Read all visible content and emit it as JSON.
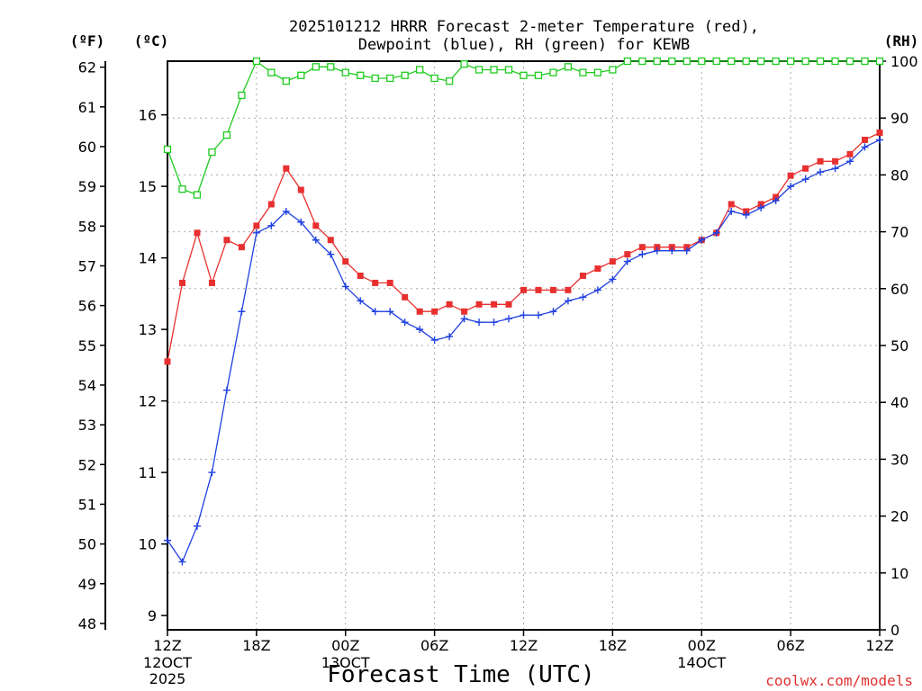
{
  "chart_data": {
    "type": "line",
    "title_line1": "2025101212 HRRR Forecast 2-meter Temperature (red),",
    "title_line2": "Dewpoint (blue), RH (green) for KEWB",
    "xlabel": "Forecast Time (UTC)",
    "credit": "coolwx.com/models",
    "units": {
      "fahrenheit": "(ºF)",
      "celsius": "(ºC)",
      "rh": "(RH)"
    },
    "x_range": [
      0,
      48
    ],
    "x_ticks": [
      {
        "x": 0,
        "label": "12Z",
        "sub1": "12OCT",
        "sub2": "2025"
      },
      {
        "x": 6,
        "label": "18Z",
        "sub1": "",
        "sub2": ""
      },
      {
        "x": 12,
        "label": "00Z",
        "sub1": "13OCT",
        "sub2": ""
      },
      {
        "x": 18,
        "label": "06Z",
        "sub1": "",
        "sub2": ""
      },
      {
        "x": 24,
        "label": "12Z",
        "sub1": "",
        "sub2": ""
      },
      {
        "x": 30,
        "label": "18Z",
        "sub1": "",
        "sub2": ""
      },
      {
        "x": 36,
        "label": "00Z",
        "sub1": "14OCT",
        "sub2": ""
      },
      {
        "x": 42,
        "label": "06Z",
        "sub1": "",
        "sub2": ""
      },
      {
        "x": 48,
        "label": "12Z",
        "sub1": "",
        "sub2": ""
      }
    ],
    "celsius_range": [
      8.8,
      16.75
    ],
    "celsius_ticks": [
      "9",
      "10",
      "11",
      "12",
      "13",
      "14",
      "15",
      "16"
    ],
    "fahrenheit_ticks": [
      "48",
      "49",
      "50",
      "51",
      "52",
      "53",
      "54",
      "55",
      "56",
      "57",
      "58",
      "59",
      "60",
      "61",
      "62"
    ],
    "rh_range": [
      0,
      100
    ],
    "rh_ticks": [
      "0",
      "10",
      "20",
      "30",
      "40",
      "50",
      "60",
      "70",
      "80",
      "90",
      "100"
    ],
    "grid": true,
    "series": [
      {
        "name": "Temperature",
        "color": "#e83030",
        "marker": "square-filled",
        "axis": "celsius",
        "values": [
          12.55,
          13.65,
          14.35,
          13.65,
          14.25,
          14.15,
          14.45,
          14.75,
          15.25,
          14.95,
          14.45,
          14.25,
          13.95,
          13.75,
          13.65,
          13.65,
          13.45,
          13.25,
          13.25,
          13.35,
          13.25,
          13.35,
          13.35,
          13.35,
          13.55,
          13.55,
          13.55,
          13.55,
          13.75,
          13.85,
          13.95,
          14.05,
          14.15,
          14.15,
          14.15,
          14.15,
          14.25,
          14.35,
          14.75,
          14.65,
          14.75,
          14.85,
          15.15,
          15.25,
          15.35,
          15.35,
          15.45,
          15.65,
          15.75
        ]
      },
      {
        "name": "Dewpoint",
        "color": "#2040e0",
        "marker": "plus",
        "axis": "celsius",
        "values": [
          10.05,
          9.75,
          10.25,
          11.0,
          12.15,
          13.25,
          14.35,
          14.45,
          14.65,
          14.5,
          14.25,
          14.05,
          13.6,
          13.4,
          13.25,
          13.25,
          13.1,
          13.0,
          12.85,
          12.9,
          13.15,
          13.1,
          13.1,
          13.15,
          13.2,
          13.2,
          13.25,
          13.4,
          13.45,
          13.55,
          13.7,
          13.95,
          14.05,
          14.1,
          14.1,
          14.1,
          14.25,
          14.35,
          14.65,
          14.6,
          14.7,
          14.8,
          15.0,
          15.1,
          15.2,
          15.25,
          15.35,
          15.55,
          15.65
        ]
      },
      {
        "name": "RH",
        "color": "#20cc20",
        "marker": "square-open",
        "axis": "rh",
        "values": [
          84.5,
          77.5,
          76.5,
          84,
          87,
          94,
          100,
          98,
          96.5,
          97.5,
          99,
          99,
          98,
          97.5,
          97,
          97,
          97.5,
          98.5,
          97,
          96.5,
          99.5,
          98.5,
          98.5,
          98.5,
          97.5,
          97.5,
          98,
          99,
          98,
          98,
          98.5,
          100,
          100,
          100,
          100,
          100,
          100,
          100,
          100,
          100,
          100,
          100,
          100,
          100,
          100,
          100,
          100,
          100,
          100
        ]
      }
    ]
  }
}
